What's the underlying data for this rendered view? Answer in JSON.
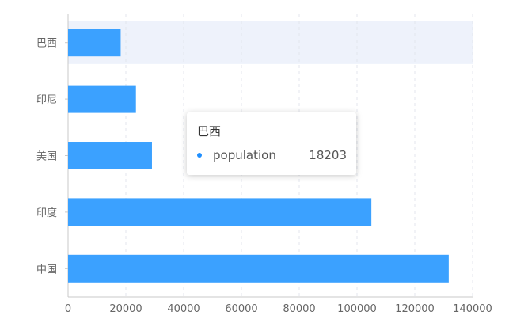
{
  "chart_data": {
    "type": "bar",
    "orientation": "horizontal",
    "categories": [
      "中国",
      "印度",
      "美国",
      "印尼",
      "巴西"
    ],
    "series": [
      {
        "name": "population",
        "values": [
          131744,
          104970,
          29034,
          23489,
          18203
        ]
      }
    ],
    "xlim": [
      0,
      140000
    ],
    "xticks": [
      "0",
      "20000",
      "40000",
      "60000",
      "80000",
      "100000",
      "120000",
      "140000"
    ],
    "grid": true,
    "highlighted_category": "巴西"
  },
  "colors": {
    "bar": "#3ba1ff",
    "highlight_band": "#eef2fb",
    "grid": "#e3e6ee",
    "axis": "#c8c8c8"
  },
  "tooltip": {
    "title": "巴西",
    "series_name": "population",
    "value": "18203",
    "marker_color": "#1f8fff"
  }
}
